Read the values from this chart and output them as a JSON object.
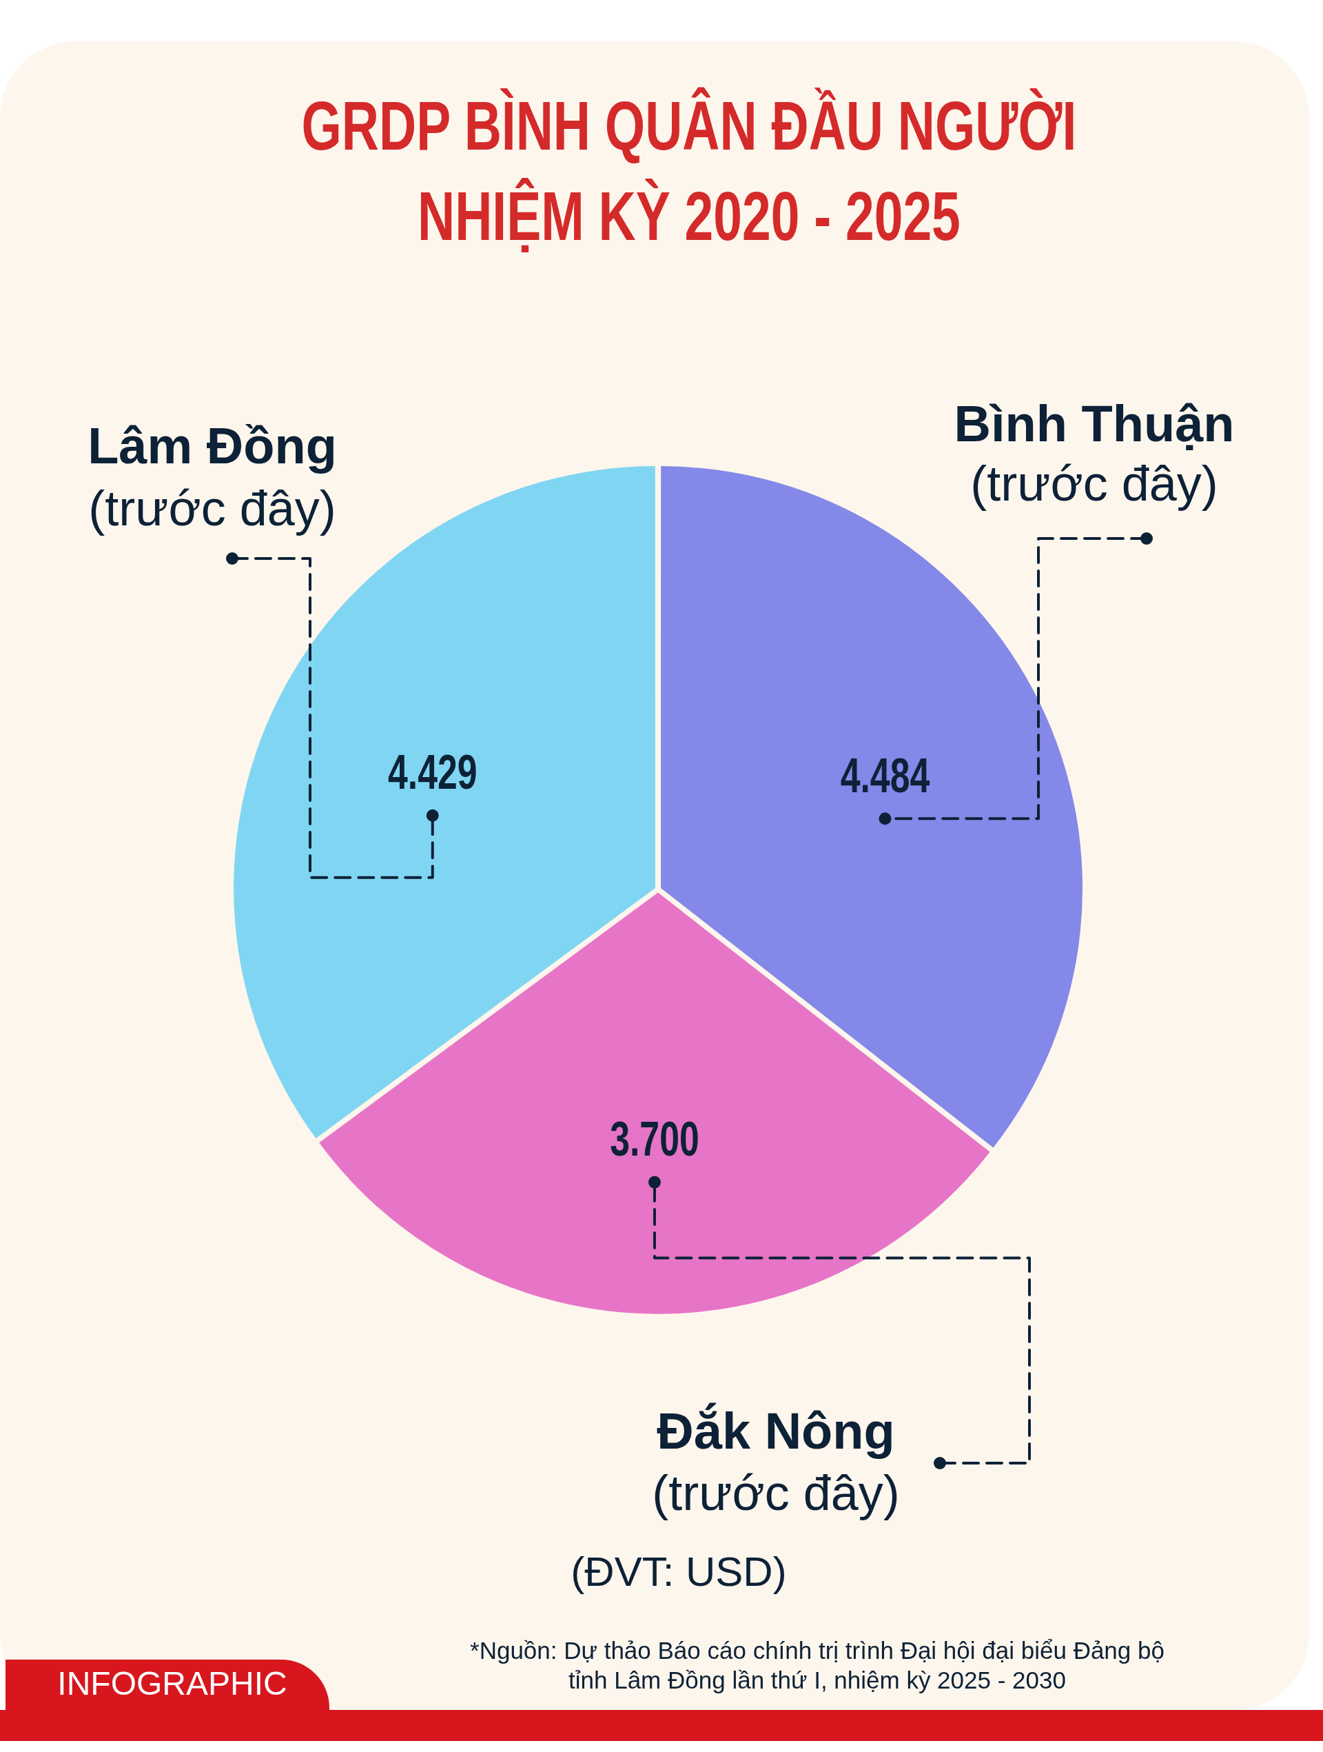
{
  "chart_data": {
    "type": "pie",
    "title": "GRDP BÌNH QUÂN ĐẦU NGƯỜI\nNHIỆM KỲ 2020 - 2025",
    "categories": [
      "Lâm Đồng (trước đây)",
      "Bình Thuận (trước đây)",
      "Đắk Nông (trước đây)"
    ],
    "values": [
      4429,
      4484,
      3700
    ],
    "value_labels": [
      "4.429",
      "4.484",
      "3.700"
    ],
    "colors": [
      "#80d6f2",
      "#8488e8",
      "#e775c7"
    ],
    "annotations": [
      "(ĐVT: USD)",
      "*Nguồn: Dự thảo Báo cáo chính trị trình Đại hội đại biểu Đảng bộ tỉnh Lâm Đồng lần thứ I, nhiệm kỳ 2025 - 2030",
      "INFOGRAPHIC"
    ]
  }
}
